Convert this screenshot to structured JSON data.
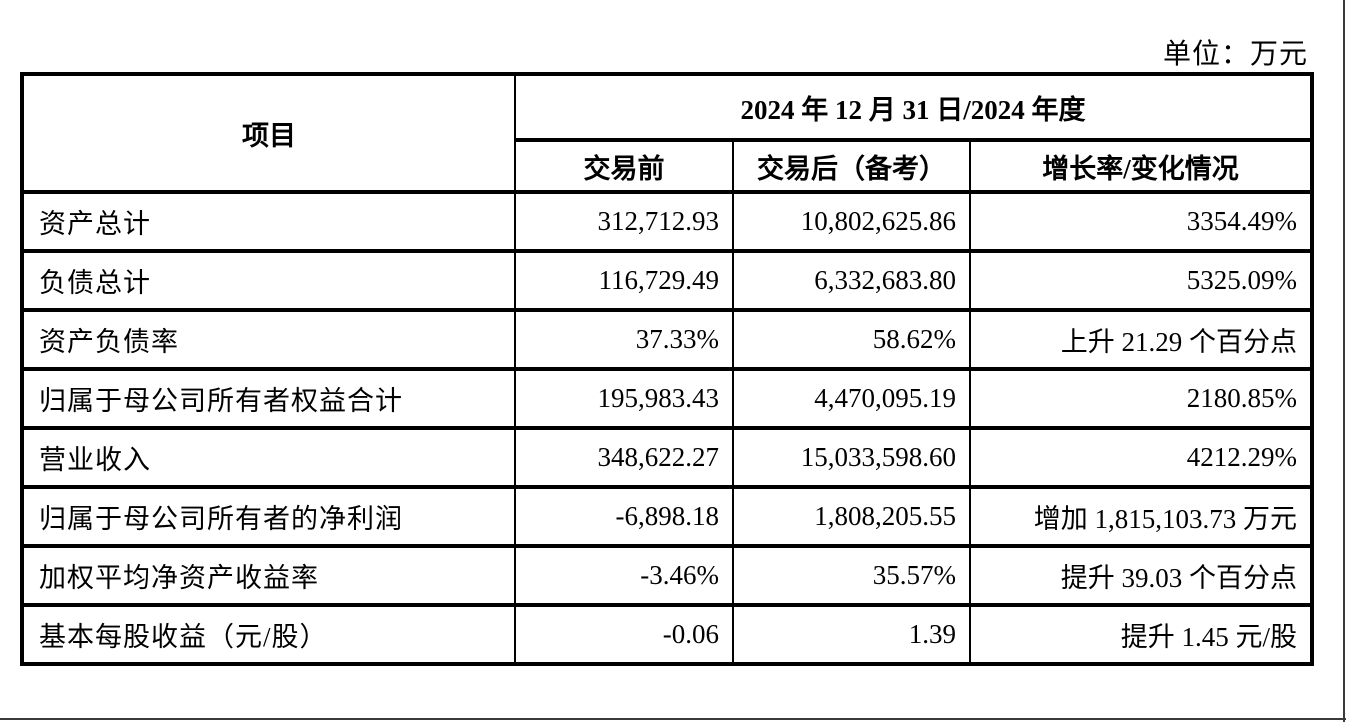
{
  "unit_label": "单位：万元",
  "table": {
    "item_header": "项目",
    "period_header": "2024 年 12 月 31 日/2024 年度",
    "sub_headers": {
      "before": "交易前",
      "after": "交易后（备考）",
      "change": "增长率/变化情况"
    },
    "rows": [
      {
        "item": "资产总计",
        "before": "312,712.93",
        "after": "10,802,625.86",
        "change": "3354.49%"
      },
      {
        "item": "负债总计",
        "before": "116,729.49",
        "after": "6,332,683.80",
        "change": "5325.09%"
      },
      {
        "item": "资产负债率",
        "before": "37.33%",
        "after": "58.62%",
        "change": "上升 21.29 个百分点"
      },
      {
        "item": "归属于母公司所有者权益合计",
        "before": "195,983.43",
        "after": "4,470,095.19",
        "change": "2180.85%"
      },
      {
        "item": "营业收入",
        "before": "348,622.27",
        "after": "15,033,598.60",
        "change": "4212.29%"
      },
      {
        "item": "归属于母公司所有者的净利润",
        "before": "-6,898.18",
        "after": "1,808,205.55",
        "change": "增加 1,815,103.73 万元"
      },
      {
        "item": "加权平均净资产收益率",
        "before": "-3.46%",
        "after": "35.57%",
        "change": "提升 39.03 个百分点"
      },
      {
        "item": "基本每股收益（元/股）",
        "before": "-0.06",
        "after": "1.39",
        "change": "提升 1.45 元/股"
      }
    ]
  },
  "colors": {
    "border": "#000000",
    "background": "#ffffff",
    "text": "#000000"
  }
}
